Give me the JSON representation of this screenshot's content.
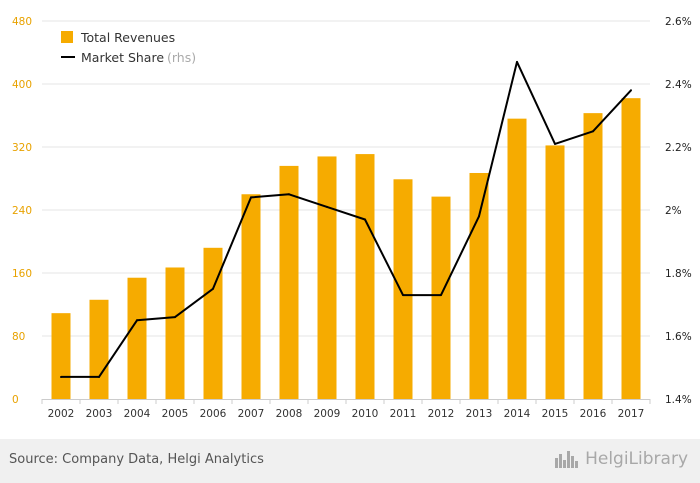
{
  "colors": {
    "bar": "#f6ab00",
    "line": "#000000",
    "left_axis_text": "#e8a200",
    "right_axis_text": "#222222",
    "grid": "#e6e6e6"
  },
  "legend": {
    "bar_label": "Total Revenues",
    "line_label": "Market Share",
    "line_suffix": "(rhs)"
  },
  "footer": {
    "source": "Source: Company Data, Helgi Analytics",
    "brand": "HelgiLibrary"
  },
  "icons": {
    "brand_logo": "helgi-city-skyline-icon"
  },
  "chart_data": {
    "type": "bar",
    "categories": [
      "2002",
      "2003",
      "2004",
      "2005",
      "2006",
      "2007",
      "2008",
      "2009",
      "2010",
      "2011",
      "2012",
      "2013",
      "2014",
      "2015",
      "2016",
      "2017"
    ],
    "series": [
      {
        "name": "Total Revenues",
        "type": "bar",
        "axis": "left",
        "values": [
          109,
          126,
          154,
          167,
          192,
          260,
          296,
          308,
          311,
          279,
          257,
          287,
          356,
          322,
          363,
          382
        ]
      },
      {
        "name": "Market Share",
        "type": "line",
        "axis": "right",
        "values": [
          1.47,
          1.47,
          1.65,
          1.66,
          1.75,
          2.04,
          2.05,
          2.01,
          1.97,
          1.73,
          1.73,
          1.98,
          2.47,
          2.21,
          2.25,
          2.38
        ]
      }
    ],
    "left_axis": {
      "min": 0,
      "max": 480,
      "ticks": [
        "0",
        "80",
        "160",
        "240",
        "320",
        "400",
        "480"
      ]
    },
    "right_axis": {
      "min": 1.4,
      "max": 2.6,
      "ticks": [
        "1.4%",
        "1.6%",
        "1.8%",
        "2%",
        "2.2%",
        "2.4%",
        "2.6%"
      ]
    },
    "grid": true,
    "legend_position": "top-left"
  }
}
